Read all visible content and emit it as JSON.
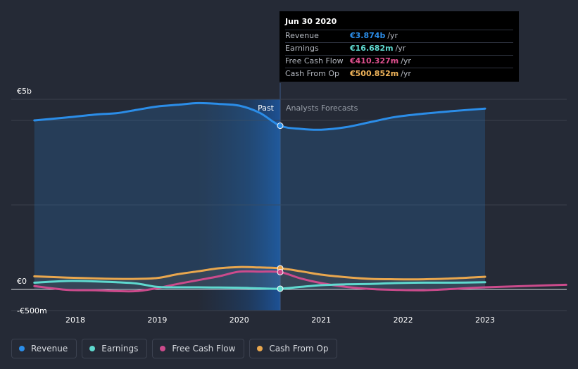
{
  "tooltip": {
    "date": "Jun 30 2020",
    "rows": [
      {
        "label": "Revenue",
        "value": "€3.874b",
        "unit": "/yr",
        "color": "#2b8de8"
      },
      {
        "label": "Earnings",
        "value": "€16.682m",
        "unit": "/yr",
        "color": "#5fd9cf"
      },
      {
        "label": "Free Cash Flow",
        "value": "€410.327m",
        "unit": "/yr",
        "color": "#e0508f"
      },
      {
        "label": "Cash From Op",
        "value": "€500.852m",
        "unit": "/yr",
        "color": "#f0b45a"
      }
    ]
  },
  "legend": [
    {
      "label": "Revenue",
      "color": "#2b8de8"
    },
    {
      "label": "Earnings",
      "color": "#5fd9cf"
    },
    {
      "label": "Free Cash Flow",
      "color": "#cc4b8c"
    },
    {
      "label": "Cash From Op",
      "color": "#e9a74e"
    }
  ],
  "chart_data": {
    "type": "line",
    "title": "",
    "xlabel": "",
    "ylabel": "",
    "ylim": [
      -500,
      5000
    ],
    "y_ticks": [
      {
        "value": 5000,
        "label": "€5b"
      },
      {
        "value": 0,
        "label": "€0"
      },
      {
        "value": -500,
        "label": "-€500m"
      }
    ],
    "x_ticks": [
      2018,
      2019,
      2020,
      2021,
      2022,
      2023
    ],
    "xlim": [
      2017.5,
      2023.99
    ],
    "divider_x": 2020.5,
    "past_label": "Past",
    "forecast_label": "Analysts Forecasts",
    "highlight_x": 2020.5,
    "series": [
      {
        "name": "Revenue",
        "color": "#2b8de8",
        "fill": true,
        "marker_value": 3874,
        "points": [
          [
            2017.5,
            4000
          ],
          [
            2017.9,
            4070
          ],
          [
            2018.25,
            4140
          ],
          [
            2018.5,
            4170
          ],
          [
            2018.75,
            4250
          ],
          [
            2019.0,
            4330
          ],
          [
            2019.25,
            4370
          ],
          [
            2019.5,
            4410
          ],
          [
            2019.75,
            4390
          ],
          [
            2020.0,
            4350
          ],
          [
            2020.25,
            4180
          ],
          [
            2020.5,
            3874
          ],
          [
            2020.75,
            3800
          ],
          [
            2021.0,
            3780
          ],
          [
            2021.3,
            3840
          ],
          [
            2021.6,
            3960
          ],
          [
            2021.9,
            4080
          ],
          [
            2022.25,
            4160
          ],
          [
            2022.6,
            4220
          ],
          [
            2023.0,
            4280
          ]
        ]
      },
      {
        "name": "Cash From Op",
        "color": "#e9a74e",
        "fill": false,
        "marker_value": 501,
        "points": [
          [
            2017.5,
            310
          ],
          [
            2017.9,
            280
          ],
          [
            2018.25,
            260
          ],
          [
            2018.5,
            250
          ],
          [
            2018.75,
            250
          ],
          [
            2019.0,
            270
          ],
          [
            2019.25,
            360
          ],
          [
            2019.5,
            430
          ],
          [
            2019.75,
            500
          ],
          [
            2020.0,
            530
          ],
          [
            2020.25,
            520
          ],
          [
            2020.5,
            501
          ],
          [
            2020.75,
            430
          ],
          [
            2021.0,
            350
          ],
          [
            2021.3,
            290
          ],
          [
            2021.6,
            250
          ],
          [
            2021.9,
            240
          ],
          [
            2022.25,
            240
          ],
          [
            2022.6,
            260
          ],
          [
            2023.0,
            300
          ]
        ]
      },
      {
        "name": "Free Cash Flow",
        "color": "#cc4b8c",
        "fill": false,
        "marker_value": 410,
        "points": [
          [
            2017.5,
            80
          ],
          [
            2017.9,
            -10
          ],
          [
            2018.25,
            -20
          ],
          [
            2018.5,
            -40
          ],
          [
            2018.75,
            -40
          ],
          [
            2019.0,
            30
          ],
          [
            2019.25,
            130
          ],
          [
            2019.5,
            220
          ],
          [
            2019.75,
            310
          ],
          [
            2020.0,
            420
          ],
          [
            2020.25,
            420
          ],
          [
            2020.5,
            410
          ],
          [
            2020.75,
            260
          ],
          [
            2021.0,
            150
          ],
          [
            2021.3,
            60
          ],
          [
            2021.6,
            10
          ],
          [
            2021.9,
            -10
          ],
          [
            2022.25,
            -20
          ],
          [
            2022.6,
            10
          ],
          [
            2023.0,
            50
          ],
          [
            2023.99,
            110
          ]
        ]
      },
      {
        "name": "Earnings",
        "color": "#5fd9cf",
        "fill": false,
        "marker_value": 17,
        "points": [
          [
            2017.5,
            160
          ],
          [
            2017.9,
            200
          ],
          [
            2018.25,
            190
          ],
          [
            2018.5,
            170
          ],
          [
            2018.75,
            140
          ],
          [
            2019.0,
            60
          ],
          [
            2019.25,
            50
          ],
          [
            2019.5,
            50
          ],
          [
            2019.75,
            45
          ],
          [
            2020.0,
            40
          ],
          [
            2020.25,
            25
          ],
          [
            2020.5,
            17
          ],
          [
            2020.75,
            60
          ],
          [
            2021.0,
            100
          ],
          [
            2021.3,
            120
          ],
          [
            2021.6,
            130
          ],
          [
            2021.9,
            150
          ],
          [
            2022.25,
            160
          ],
          [
            2022.6,
            160
          ],
          [
            2023.0,
            170
          ]
        ]
      }
    ]
  }
}
